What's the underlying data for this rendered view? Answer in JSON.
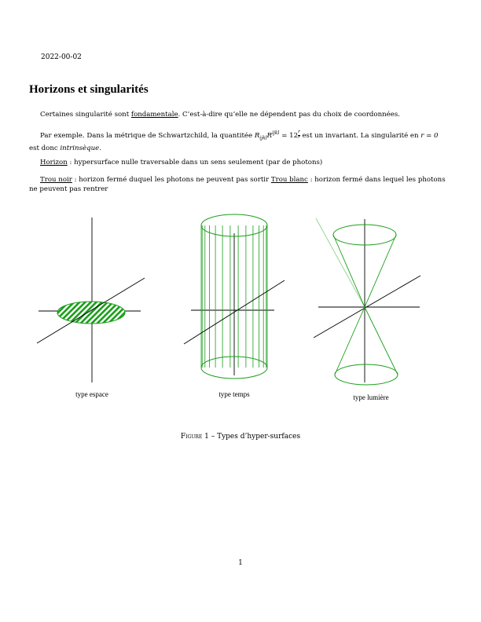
{
  "header": {
    "date": "2022-00-02"
  },
  "section": {
    "title": "Horizons et singularités"
  },
  "paragraphs": {
    "p1": {
      "pre": "Certaines singularité sont ",
      "term": "fondamentale",
      "post": ". C’est-à-dire qu’elle ne dépendent pas du choix de coordonnées."
    },
    "p2": {
      "pre": "Par exemple. Dans la métrique de Schwartzchild, la quantitée ",
      "math_R": "R",
      "math_sub": "ijkl",
      "math_R2": "R",
      "math_sup": "ijkl",
      "math_eq": " = 12",
      "frac_num": "r",
      "frac_den": "r",
      "mid": " est un invariant. La singularité en ",
      "math_r": "r = 0",
      "line2": "est donc ",
      "term": "intrinsèque",
      "end": "."
    },
    "p3": {
      "term": "Horizon",
      "post": " : hypersurface nulle traversable dans un sens seulement (par de photons)"
    },
    "p4": {
      "term1": "Trou noir",
      "mid": " : horizon fermé duquel les photons ne peuvent pas sortir ",
      "term2": "Trou blanc",
      "post": " : horizon fermé dans lequel les photons ne peuvent pas rentrer"
    }
  },
  "figure": {
    "panels": [
      {
        "label": "type espace"
      },
      {
        "label": "type temps"
      },
      {
        "label": "type lumière"
      }
    ],
    "caption_prefix": "Figure 1",
    "caption_text": " – Types d’hyper-surfaces",
    "colors": {
      "surface": "#1a9e1a",
      "axis": "#000000",
      "light_ray": "#8fd48f"
    }
  },
  "footer": {
    "page_number": "1"
  }
}
